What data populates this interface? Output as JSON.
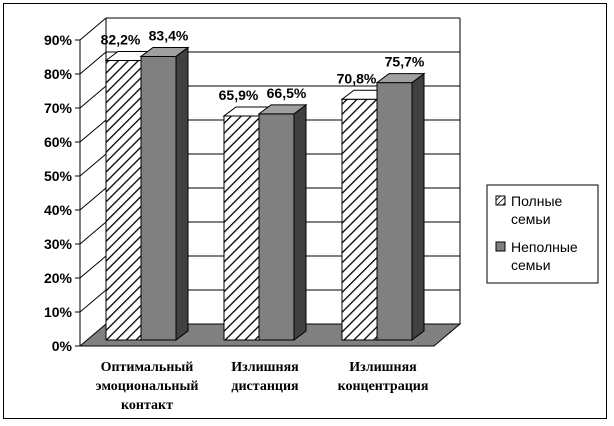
{
  "chart_data": {
    "type": "bar",
    "categories": [
      [
        "Оптимальный",
        "эмоциональный",
        "контакт"
      ],
      [
        "Излишняя",
        "дистанция"
      ],
      [
        "Излишняя",
        "концентрация"
      ]
    ],
    "series": [
      {
        "name": [
          "Полные",
          "семьи"
        ],
        "values": [
          82.2,
          65.9,
          70.8
        ],
        "labels": [
          "82,2%",
          "65,9%",
          "70,8%"
        ],
        "fill": "hatched"
      },
      {
        "name": [
          "Неполные",
          "семьи"
        ],
        "values": [
          83.4,
          66.5,
          75.7
        ],
        "labels": [
          "83,4%",
          "66,5%",
          "75,7%"
        ],
        "fill": "#808080"
      }
    ],
    "ylim": [
      0,
      90
    ],
    "yticks": [
      "0%",
      "10%",
      "20%",
      "30%",
      "40%",
      "50%",
      "60%",
      "70%",
      "80%",
      "90%"
    ],
    "grid": true,
    "legend": "right",
    "style": "3d",
    "colors": {
      "floor": "#808080",
      "bar_gray": "#808080",
      "bar_dark": "#404040"
    }
  }
}
